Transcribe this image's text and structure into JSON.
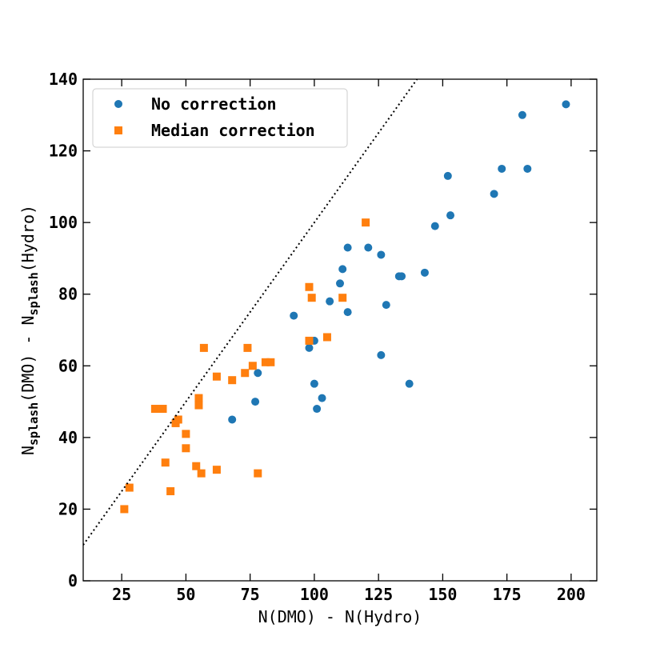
{
  "chart_data": {
    "type": "scatter",
    "xlabel": "N(DMO) - N(Hydro)",
    "ylabel": {
      "parts": [
        {
          "text": "N",
          "sub": false
        },
        {
          "text": "splash",
          "sub": true
        },
        {
          "text": "(DMO)  -  N",
          "sub": false
        },
        {
          "text": "splash",
          "sub": true
        },
        {
          "text": "(Hydro)",
          "sub": false
        }
      ]
    },
    "xlim": [
      10,
      210
    ],
    "ylim": [
      0,
      140
    ],
    "xticks": [
      25,
      50,
      75,
      100,
      125,
      150,
      175,
      200
    ],
    "yticks": [
      0,
      20,
      40,
      60,
      80,
      100,
      120,
      140
    ],
    "grid": false,
    "legend_position": "top-left",
    "reference_line": {
      "style": "dotted",
      "color": "#000000",
      "x": [
        10,
        140
      ],
      "y": [
        10,
        140
      ]
    },
    "series": [
      {
        "name": "No correction",
        "marker": "circle",
        "color": "#1f77b4",
        "points": [
          [
            68,
            45
          ],
          [
            77,
            50
          ],
          [
            78,
            58
          ],
          [
            92,
            74
          ],
          [
            98,
            65
          ],
          [
            100,
            67
          ],
          [
            100,
            55
          ],
          [
            101,
            48
          ],
          [
            103,
            51
          ],
          [
            106,
            78
          ],
          [
            110,
            83
          ],
          [
            111,
            87
          ],
          [
            113,
            93
          ],
          [
            113,
            75
          ],
          [
            121,
            93
          ],
          [
            126,
            91
          ],
          [
            126,
            63
          ],
          [
            128,
            77
          ],
          [
            133,
            85
          ],
          [
            134,
            85
          ],
          [
            137,
            55
          ],
          [
            143,
            86
          ],
          [
            147,
            99
          ],
          [
            152,
            113
          ],
          [
            153,
            102
          ],
          [
            170,
            108
          ],
          [
            173,
            115
          ],
          [
            181,
            130
          ],
          [
            183,
            115
          ],
          [
            198,
            133
          ]
        ]
      },
      {
        "name": "Median correction",
        "marker": "square",
        "color": "#ff7f0e",
        "points": [
          [
            26,
            20
          ],
          [
            28,
            26
          ],
          [
            38,
            48
          ],
          [
            41,
            48
          ],
          [
            42,
            33
          ],
          [
            44,
            25
          ],
          [
            46,
            44
          ],
          [
            47,
            45
          ],
          [
            50,
            41
          ],
          [
            50,
            37
          ],
          [
            54,
            32
          ],
          [
            55,
            51
          ],
          [
            55,
            49
          ],
          [
            56,
            30
          ],
          [
            57,
            65
          ],
          [
            62,
            57
          ],
          [
            62,
            31
          ],
          [
            68,
            56
          ],
          [
            73,
            58
          ],
          [
            74,
            65
          ],
          [
            76,
            60
          ],
          [
            78,
            30
          ],
          [
            81,
            61
          ],
          [
            83,
            61
          ],
          [
            98,
            82
          ],
          [
            98,
            67
          ],
          [
            99,
            79
          ],
          [
            105,
            68
          ],
          [
            111,
            79
          ],
          [
            120,
            100
          ]
        ]
      }
    ]
  }
}
